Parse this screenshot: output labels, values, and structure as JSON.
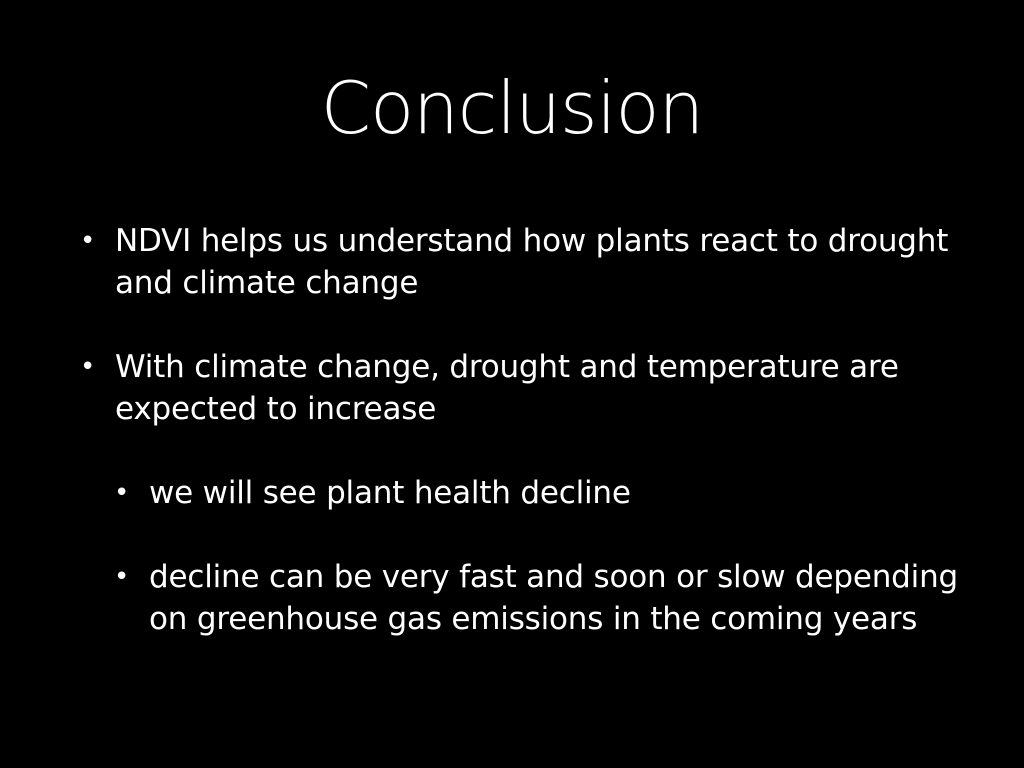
{
  "slide": {
    "title": "Conclusion",
    "bullets": [
      {
        "marker": "•",
        "text": "NDVI helps us understand how plants react to drought and climate change"
      },
      {
        "marker": "•",
        "text": "With climate change, drought and temperature are expected to increase"
      },
      {
        "marker": "•",
        "text": "we will see plant health decline"
      },
      {
        "marker": "•",
        "text": "decline can be very fast and soon or slow depending on greenhouse gas emissions in the coming years"
      }
    ]
  },
  "colors": {
    "background": "#000000",
    "text": "#ffffff"
  }
}
